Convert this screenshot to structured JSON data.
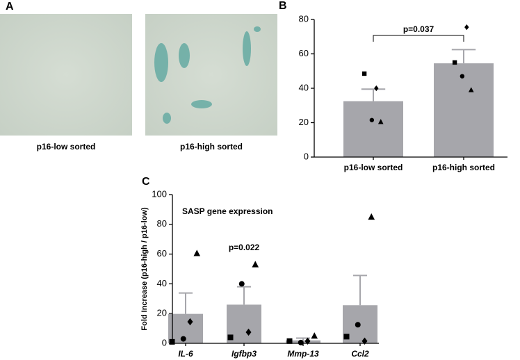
{
  "panel_labels": [
    "A",
    "B",
    "C"
  ],
  "images": [
    {
      "caption": "p16-low sorted"
    },
    {
      "caption": "p16-high sorted"
    }
  ],
  "chart_data": [
    {
      "type": "bar",
      "categories": [
        "p16-low sorted",
        "p16-high sorted"
      ],
      "values": [
        32.5,
        54.5
      ],
      "errors": [
        7,
        8
      ],
      "markers": [
        "square",
        "diamond",
        "triangle",
        "circle"
      ],
      "points": [
        [
          48.5,
          40,
          20.5,
          21.5
        ],
        [
          55,
          75.5,
          39,
          47
        ]
      ],
      "color": "#a6a6ab",
      "ylim": [
        0,
        80
      ],
      "yticks": [
        0,
        20,
        40,
        60,
        80
      ],
      "annotation": "p=0.037"
    },
    {
      "type": "bar",
      "title": "SASP gene expression",
      "y_label": "Fold Increase (p16-high / p16-low)",
      "categories": [
        "IL-6",
        "Igfbp3",
        "Mmp-13",
        "Ccl2"
      ],
      "italic": true,
      "values": [
        19.8,
        26,
        2,
        25.6
      ],
      "errors": [
        14,
        12,
        1.5,
        20
      ],
      "markers": [
        "square",
        "diamond",
        "triangle",
        "circle"
      ],
      "points": [
        [
          1,
          14.5,
          60.5,
          3
        ],
        [
          4,
          7.5,
          53,
          40
        ],
        [
          1.5,
          1.5,
          5,
          0.5
        ],
        [
          4.5,
          1.5,
          85,
          12.5
        ]
      ],
      "color": "#a6a6ab",
      "ylim": [
        0,
        100
      ],
      "yticks": [
        0,
        20,
        40,
        60,
        80,
        100
      ],
      "annotation": "p=0.022"
    }
  ]
}
